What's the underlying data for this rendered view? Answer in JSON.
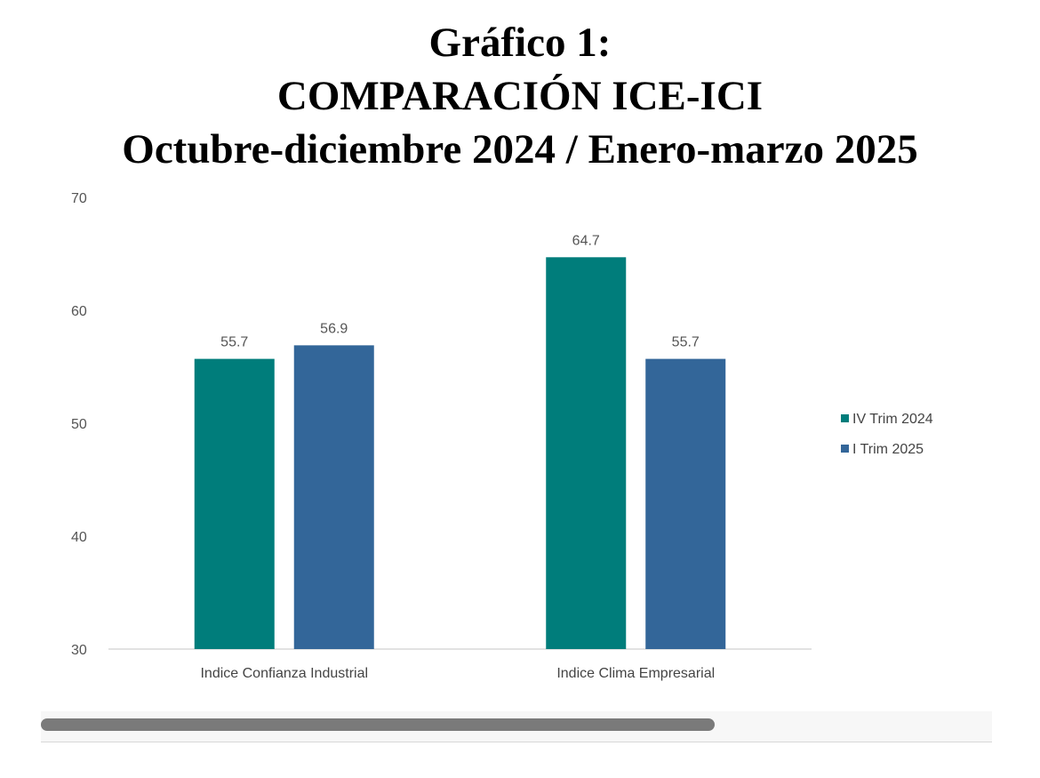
{
  "title": {
    "line1": "Gráfico 1:",
    "line2": "COMPARACIÓN ICE-ICI",
    "line3": "Octubre-diciembre 2024 / Enero-marzo 2025"
  },
  "colors": {
    "series1": "#007d7b",
    "series2": "#336699",
    "axis": "#d9d9d9"
  },
  "chart_data": {
    "type": "bar",
    "title": "Gráfico 1: COMPARACIÓN ICE-ICI Octubre-diciembre 2024 / Enero-marzo 2025",
    "categories": [
      "Indice Confianza Industrial",
      "Indice Clima Empresarial"
    ],
    "series": [
      {
        "name": "IV Trim 2024",
        "values": [
          55.7,
          64.7
        ]
      },
      {
        "name": "I Trim 2025",
        "values": [
          56.9,
          55.7
        ]
      }
    ],
    "ylim": [
      30,
      70
    ],
    "yticks": [
      30,
      40,
      50,
      60,
      70
    ],
    "grid": false,
    "legend": "right",
    "data_labels": true
  },
  "scrollbar": {
    "position": 0
  }
}
